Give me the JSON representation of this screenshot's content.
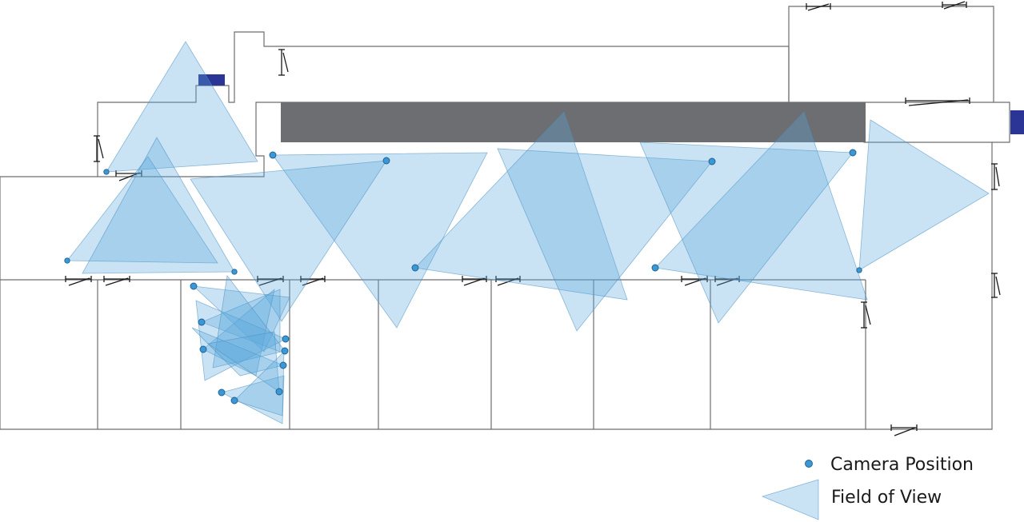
{
  "legend": {
    "camera_label": "Camera Position",
    "fov_label": "Field of View"
  },
  "colors": {
    "wall": "#6d6e71",
    "obstacle": "#6d6e71",
    "marker": "#2b3595",
    "fov_fill": "#5aa9dc",
    "camera": "#3b98d6",
    "door": "#1a1a1a"
  },
  "icons": {
    "camera": "camera-position-icon",
    "fov": "field-of-view-icon"
  }
}
